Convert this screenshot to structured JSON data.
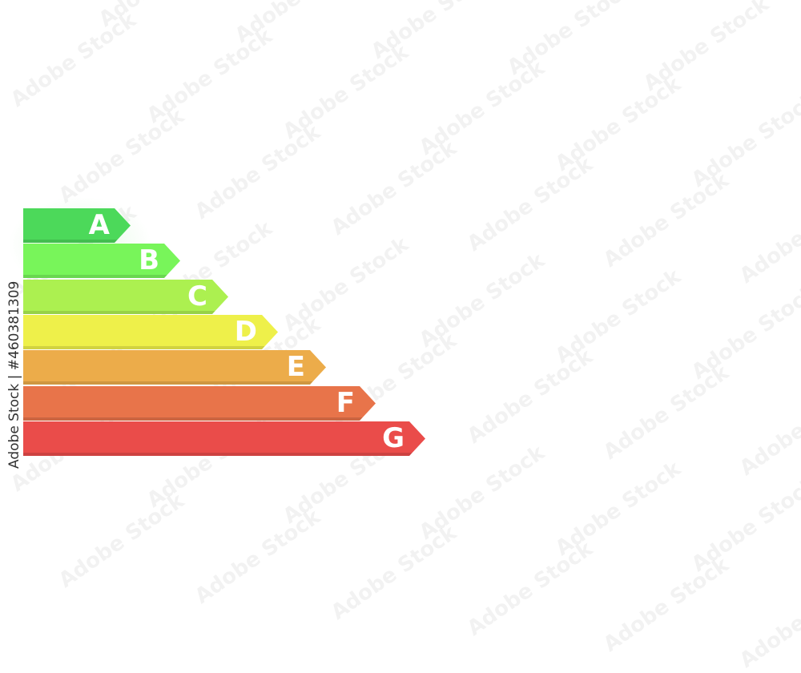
{
  "rating_scale": {
    "bars": [
      {
        "label": "A",
        "color": "#4cd95a"
      },
      {
        "label": "B",
        "color": "#78f55a"
      },
      {
        "label": "C",
        "color": "#acf050"
      },
      {
        "label": "D",
        "color": "#eef04a"
      },
      {
        "label": "E",
        "color": "#ecac4a"
      },
      {
        "label": "F",
        "color": "#e8744a"
      },
      {
        "label": "G",
        "color": "#ea4c4a"
      }
    ]
  },
  "watermark": {
    "text": "Adobe Stock",
    "credit": "Adobe Stock | #460381309"
  }
}
